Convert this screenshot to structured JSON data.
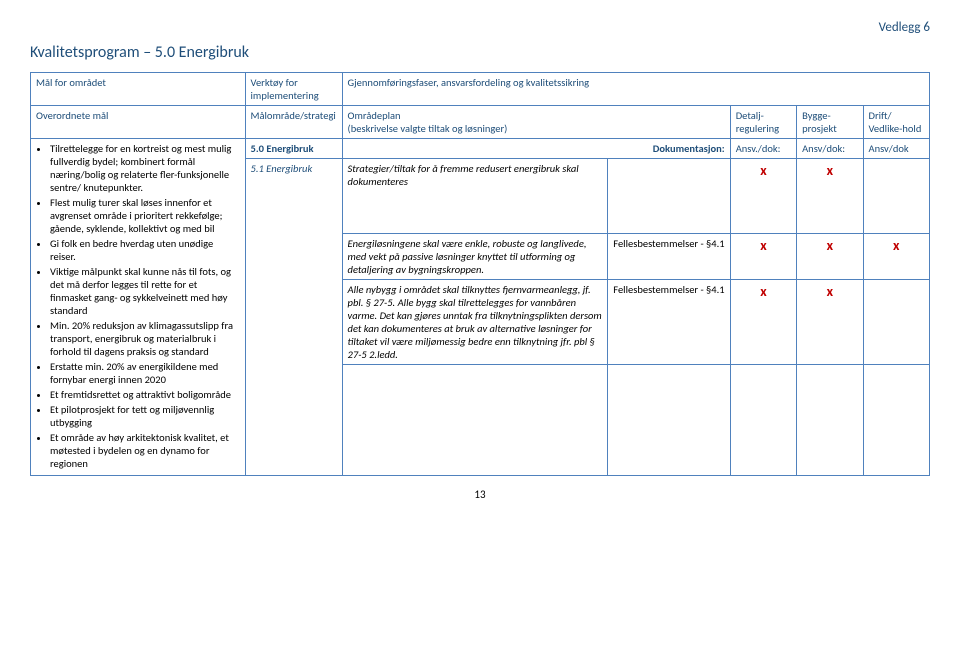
{
  "attachment": "Vedlegg 6",
  "pageTitle": "Kvalitetsprogram – 5.0 Energibruk",
  "header": {
    "goals": "Mål for området",
    "tool": "Verktøy for implementering",
    "phases": "Gjennomføringsfaser, ansvarsfordeling og kvalitetssikring",
    "overordnet": "Overordnete mål",
    "strategi": "Målområde/strategi",
    "omradeplan": "Områdeplan",
    "omradeplanSub": "(beskrivelse valgte tiltak og løsninger)",
    "detalj": "Detalj-regulering",
    "bygge": "Bygge-prosjekt",
    "drift": "Drift/ Vedlike-hold"
  },
  "bullets": [
    "Tilrettelegge for en kortreist og mest mulig fullverdig bydel; kombinert formål næring/bolig og relaterte fler-funksjonelle sentre/ knutepunkter.",
    "Flest mulig turer skal løses innenfor et avgrenset område i prioritert rekkefølge; gående, syklende, kollektivt og med bil",
    "Gi folk en bedre hverdag uten unødige reiser.",
    "Viktige målpunkt skal kunne nås til fots, og det må derfor legges til rette for et finmasket gang- og sykkelveinett med høy standard",
    "Min. 20% reduksjon av klimagassutslipp fra transport, energibruk og materialbruk i forhold til dagens praksis og standard",
    "Erstatte min. 20% av energikildene med fornybar energi innen 2020",
    "Et fremtidsrettet og attraktivt boligområde",
    "Et pilotprosjekt for tett og miljøvennlig utbygging",
    "Et område av høy arkitektonisk kvalitet, et møtested i bydelen og en dynamo for regionen"
  ],
  "rowDoc": {
    "strategi": "5.0 Energibruk",
    "doc": "Dokumentasjon:",
    "det": "Ansv./dok:",
    "bygg": "Ansv/dok:",
    "drift": "Ansv/dok"
  },
  "strategiSub": "5.1 Energibruk",
  "row1": {
    "plan": "Strategier/tiltak for å fremme redusert energibruk skal dokumenteres",
    "doc": "",
    "det": "x",
    "bygg": "x",
    "drift": ""
  },
  "row2": {
    "plan": "Energiløsningene skal være enkle, robuste og langlivede, med vekt på passive løsninger knyttet til utforming og detaljering av bygningskroppen.",
    "doc": "Fellesbestemmelser - §4.1",
    "det": "x",
    "bygg": "x",
    "drift": "x"
  },
  "row3": {
    "plan": "Alle nybygg i området skal tilknyttes fjernvarmeanlegg, jf. pbl. § 27-5. Alle bygg skal tilrettelegges for vannbåren varme. Det kan gjøres unntak fra tilknytningsplikten dersom det kan dokumenteres at bruk av alternative løsninger for tiltaket vil være miljømessig bedre enn tilknytning jfr. pbl § 27-5 2.ledd.",
    "doc": "Fellesbestemmelser - §4.1",
    "det": "x",
    "bygg": "x",
    "drift": ""
  },
  "pageNum": "13"
}
